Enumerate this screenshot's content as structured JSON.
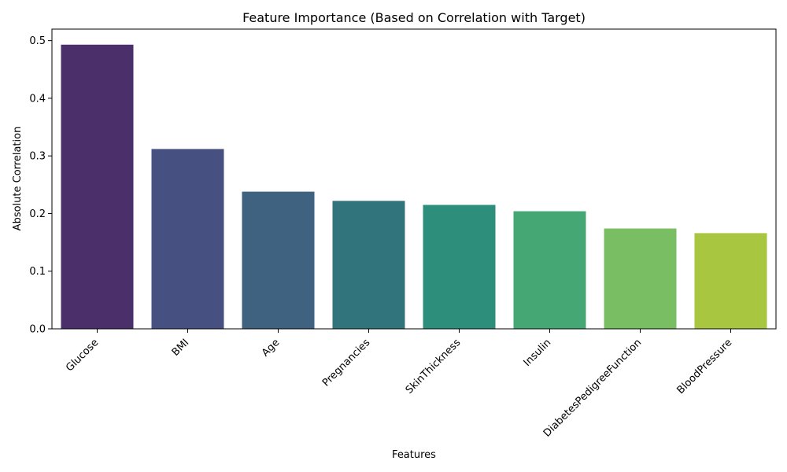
{
  "chart_data": {
    "type": "bar",
    "title": "Feature Importance (Based on Correlation with Target)",
    "xlabel": "Features",
    "ylabel": "Absolute Correlation",
    "ylim": [
      0,
      0.52
    ],
    "yticks": [
      "0.0",
      "0.1",
      "0.2",
      "0.3",
      "0.4",
      "0.5"
    ],
    "grid": false,
    "categories": [
      "Glucose",
      "BMI",
      "Age",
      "Pregnancies",
      "SkinThickness",
      "Insulin",
      "DiabetesPedigreeFunction",
      "BloodPressure"
    ],
    "values": [
      0.493,
      0.312,
      0.238,
      0.222,
      0.215,
      0.204,
      0.174,
      0.166
    ],
    "colors": [
      "#4a2f6b",
      "#465181",
      "#3e627f",
      "#32747c",
      "#2e8e7c",
      "#45a874",
      "#79be63",
      "#a8c63f"
    ]
  }
}
